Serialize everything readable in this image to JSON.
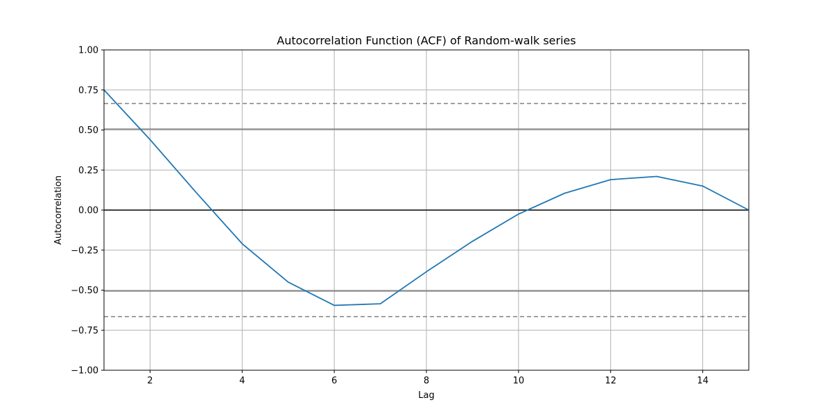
{
  "chart_data": {
    "type": "line",
    "title": "Autocorrelation Function (ACF) of Random-walk series",
    "xlabel": "Lag",
    "ylabel": "Autocorrelation",
    "xlim": [
      1,
      15
    ],
    "ylim": [
      -1.0,
      1.0
    ],
    "grid": true,
    "xticks": [
      2,
      4,
      6,
      8,
      10,
      12,
      14
    ],
    "xtick_labels": [
      "2",
      "4",
      "6",
      "8",
      "10",
      "12",
      "14"
    ],
    "yticks": [
      1.0,
      0.75,
      0.5,
      0.25,
      0.0,
      -0.25,
      -0.5,
      -0.75,
      -1.0
    ],
    "ytick_labels": [
      "1.00",
      "0.75",
      "0.50",
      "0.25",
      "0.00",
      "−0.25",
      "−0.50",
      "−0.75",
      "−1.00"
    ],
    "series": [
      {
        "x": [
          1,
          2,
          3,
          4,
          5,
          6,
          7,
          8,
          9,
          10,
          11,
          12,
          13,
          14,
          15
        ],
        "values": [
          0.75,
          0.44,
          0.11,
          -0.21,
          -0.45,
          -0.595,
          -0.585,
          -0.385,
          -0.195,
          -0.025,
          0.105,
          0.19,
          0.21,
          0.15,
          0.0
        ],
        "color": "#1f77b4"
      }
    ],
    "reference_lines": [
      {
        "y": 0.0,
        "style": "solid",
        "color": "#000000"
      },
      {
        "y": 0.506,
        "style": "solid",
        "color": "#808080"
      },
      {
        "y": -0.506,
        "style": "solid",
        "color": "#808080"
      },
      {
        "y": 0.665,
        "style": "dashed",
        "color": "#808080"
      },
      {
        "y": -0.665,
        "style": "dashed",
        "color": "#808080"
      }
    ]
  }
}
